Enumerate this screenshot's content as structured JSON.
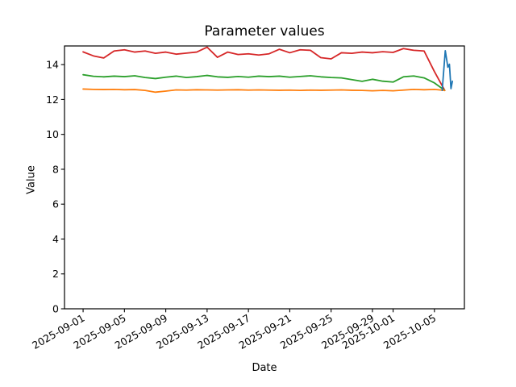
{
  "chart_data": {
    "type": "line",
    "title": "Parameter values",
    "xlabel": "Date",
    "ylabel": "Value",
    "grid": false,
    "legend": "none",
    "background_color": "#ffffff",
    "axis_color": "#000000",
    "ylim": [
      0,
      15.07
    ],
    "xlim_days": [
      -1.8,
      36.9
    ],
    "x_unit": "days since 2025-09-01",
    "yticks": [
      0,
      2,
      4,
      6,
      8,
      10,
      12,
      14
    ],
    "xticks": [
      {
        "day": 0,
        "label": "2025-09-01"
      },
      {
        "day": 4,
        "label": "2025-09-05"
      },
      {
        "day": 8,
        "label": "2025-09-09"
      },
      {
        "day": 12,
        "label": "2025-09-13"
      },
      {
        "day": 16,
        "label": "2025-09-17"
      },
      {
        "day": 20,
        "label": "2025-09-21"
      },
      {
        "day": 24,
        "label": "2025-09-25"
      },
      {
        "day": 28,
        "label": "2025-09-29"
      },
      {
        "day": 30,
        "label": "2025-10-01"
      },
      {
        "day": 34,
        "label": "2025-10-05"
      }
    ],
    "series": [
      {
        "name": "red",
        "color": "#d62728",
        "x_day": [
          0,
          1,
          2,
          3,
          4,
          5,
          6,
          7,
          8,
          9,
          10,
          11,
          12,
          13,
          14,
          15,
          16,
          17,
          18,
          19,
          20,
          21,
          22,
          23,
          24,
          25,
          26,
          27,
          28,
          29,
          30,
          31,
          32,
          33,
          34,
          35
        ],
        "values": [
          14.73,
          14.5,
          14.38,
          14.78,
          14.85,
          14.72,
          14.78,
          14.65,
          14.72,
          14.6,
          14.66,
          14.72,
          15.0,
          14.42,
          14.72,
          14.58,
          14.62,
          14.55,
          14.62,
          14.88,
          14.68,
          14.85,
          14.82,
          14.4,
          14.33,
          14.68,
          14.65,
          14.72,
          14.68,
          14.74,
          14.7,
          14.92,
          14.82,
          14.78,
          13.6,
          12.52
        ]
      },
      {
        "name": "green",
        "color": "#2ca02c",
        "x_day": [
          0,
          1,
          2,
          3,
          4,
          5,
          6,
          7,
          8,
          9,
          10,
          11,
          12,
          13,
          14,
          15,
          16,
          17,
          18,
          19,
          20,
          21,
          22,
          23,
          24,
          25,
          26,
          27,
          28,
          29,
          30,
          31,
          32,
          33,
          34,
          35
        ],
        "values": [
          13.42,
          13.33,
          13.3,
          13.34,
          13.31,
          13.36,
          13.26,
          13.2,
          13.28,
          13.34,
          13.26,
          13.31,
          13.38,
          13.3,
          13.27,
          13.32,
          13.28,
          13.34,
          13.31,
          13.34,
          13.28,
          13.32,
          13.36,
          13.3,
          13.26,
          13.24,
          13.14,
          13.04,
          13.16,
          13.05,
          13.0,
          13.3,
          13.35,
          13.24,
          12.95,
          12.52
        ]
      },
      {
        "name": "orange",
        "color": "#ff7f0e",
        "x_day": [
          0,
          1,
          2,
          3,
          4,
          5,
          6,
          7,
          8,
          9,
          10,
          11,
          12,
          13,
          14,
          15,
          16,
          17,
          18,
          19,
          20,
          21,
          22,
          23,
          24,
          25,
          26,
          27,
          28,
          29,
          30,
          31,
          32,
          33,
          34,
          35
        ],
        "values": [
          12.6,
          12.58,
          12.57,
          12.58,
          12.56,
          12.57,
          12.52,
          12.42,
          12.48,
          12.55,
          12.54,
          12.56,
          12.55,
          12.54,
          12.55,
          12.56,
          12.54,
          12.55,
          12.54,
          12.53,
          12.54,
          12.52,
          12.54,
          12.53,
          12.54,
          12.55,
          12.53,
          12.52,
          12.5,
          12.52,
          12.5,
          12.54,
          12.58,
          12.56,
          12.58,
          12.52
        ]
      },
      {
        "name": "blue",
        "color": "#1f77b4",
        "x_day": [
          34.75,
          35.05,
          35.3,
          35.45,
          35.6,
          35.74
        ],
        "values": [
          12.52,
          14.8,
          13.85,
          14.02,
          12.62,
          13.05
        ]
      }
    ]
  }
}
